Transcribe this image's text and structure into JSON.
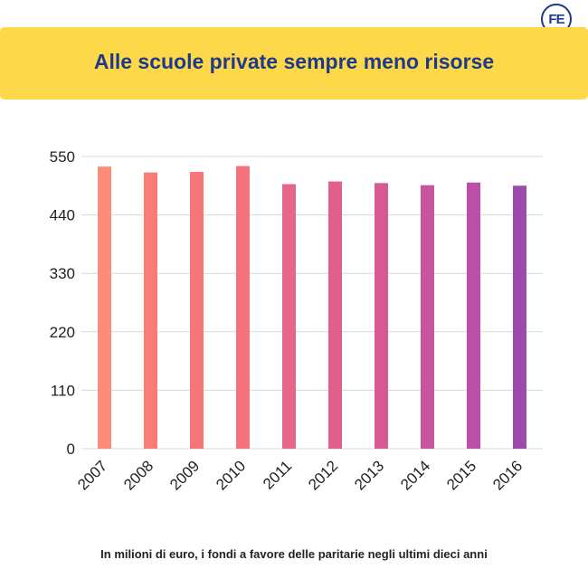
{
  "logo": {
    "text": "FE",
    "icon": "fe-logo-icon"
  },
  "banner": {
    "title": "Alle scuole private sempre meno risorse"
  },
  "caption": "In milioni di euro, i fondi a favore delle paritarie negli ultimi dieci anni",
  "chart_data": {
    "type": "bar",
    "title": "Alle scuole private sempre meno risorse",
    "categories": [
      "2007",
      "2008",
      "2009",
      "2010",
      "2011",
      "2012",
      "2013",
      "2014",
      "2015",
      "2016"
    ],
    "values": [
      531,
      520,
      521,
      532,
      498,
      503,
      500,
      496,
      501,
      495
    ],
    "ylim": [
      0,
      550
    ],
    "yticks": [
      "0",
      "110",
      "220",
      "330",
      "440",
      "550"
    ],
    "grid": true,
    "colors": [
      "#fc8d78",
      "#fb7c77",
      "#f87679",
      "#f5737c",
      "#e6678a",
      "#e1608e",
      "#d85a95",
      "#c9549f",
      "#bc4fa8",
      "#9c4aae"
    ]
  }
}
